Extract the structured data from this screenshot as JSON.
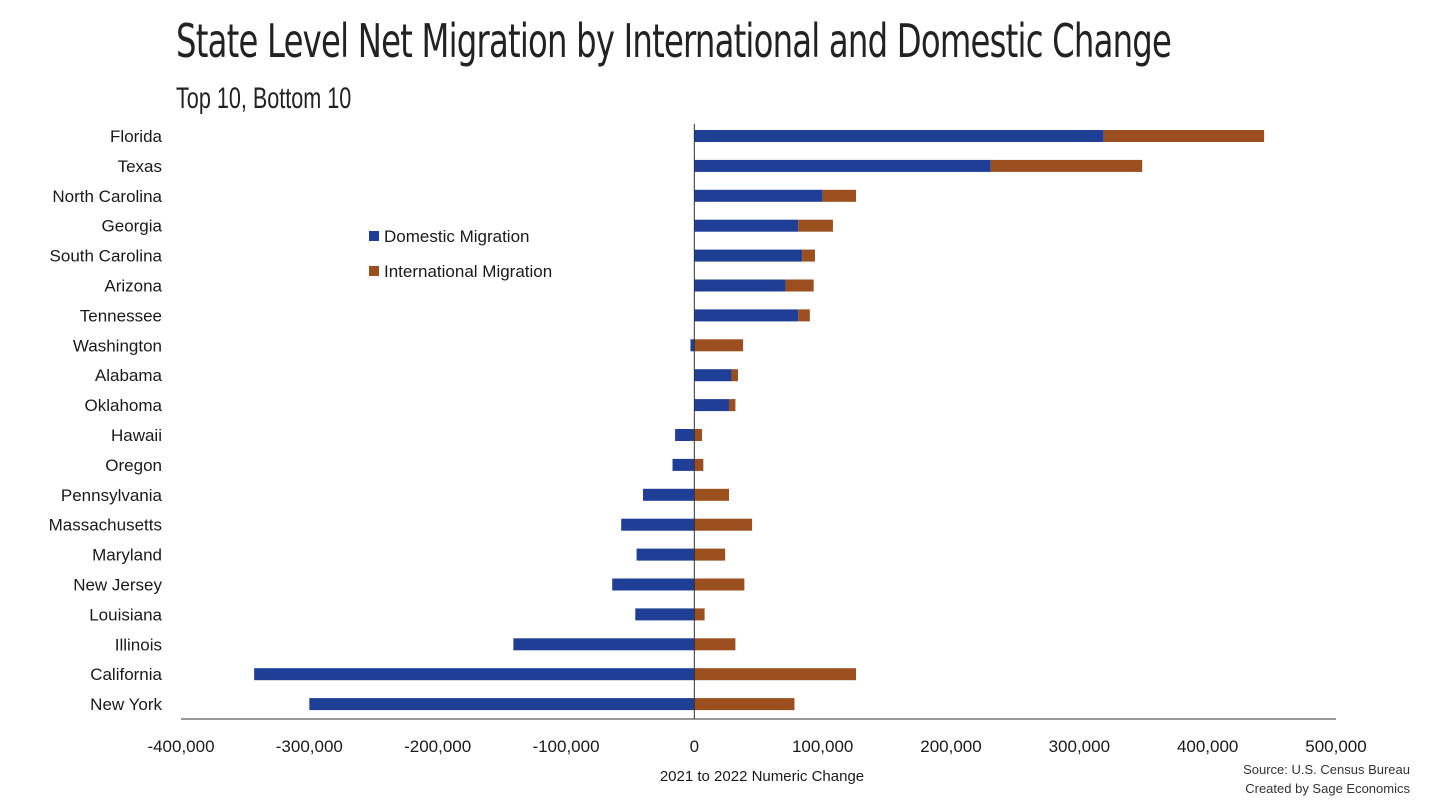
{
  "chart_data": {
    "type": "bar",
    "orientation": "horizontal",
    "stacked": true,
    "title": "State Level Net Migration by International and Domestic Change",
    "subtitle": "Top 10, Bottom 10",
    "xlabel": "2021 to 2022 Numeric Change",
    "xlim": [
      -400000,
      500000
    ],
    "xticks": [
      -400000,
      -300000,
      -200000,
      -100000,
      0,
      100000,
      200000,
      300000,
      400000,
      500000
    ],
    "xtick_labels": [
      "-400,000",
      "-300,000",
      "-200,000",
      "-100,000",
      "0",
      "100,000",
      "200,000",
      "300,000",
      "400,000",
      "500,000"
    ],
    "categories": [
      "Florida",
      "Texas",
      "North Carolina",
      "Georgia",
      "South Carolina",
      "Arizona",
      "Tennessee",
      "Washington",
      "Alabama",
      "Oklahoma",
      "Hawaii",
      "Oregon",
      "Pennsylvania",
      "Massachusetts",
      "Maryland",
      "New Jersey",
      "Louisiana",
      "Illinois",
      "California",
      "New York"
    ],
    "series": [
      {
        "name": "Domestic Migration",
        "color": "#1f3f97",
        "values": [
          319000,
          231000,
          100000,
          81000,
          84000,
          71000,
          81000,
          -3000,
          29000,
          27000,
          -15000,
          -17000,
          -40000,
          -57000,
          -45000,
          -64000,
          -46000,
          -141000,
          -343000,
          -300000
        ]
      },
      {
        "name": "International Migration",
        "color": "#9b4f1f",
        "values": [
          125000,
          118000,
          26000,
          27000,
          10000,
          22000,
          9000,
          38000,
          5000,
          5000,
          6000,
          7000,
          27000,
          45000,
          24000,
          39000,
          8000,
          32000,
          126000,
          78000
        ]
      }
    ],
    "legend_position": "upper-left-inside",
    "grid": false
  },
  "source": {
    "line1": "Source: U.S. Census Bureau",
    "line2": "Created by Sage Economics"
  }
}
